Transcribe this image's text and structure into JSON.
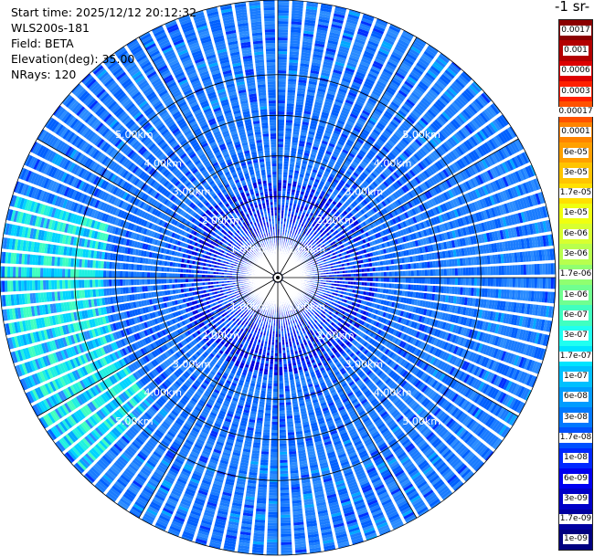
{
  "info": {
    "start_time": "Start time: 2025/12/12 20:12:32",
    "instrument": "WLS200s-181",
    "field": "Field: BETA",
    "elevation": "Elevation(deg): 35.00",
    "nrays": "NRays: 120"
  },
  "colorbar": {
    "unit_title": "-1 sr-",
    "labels": [
      "0.0017",
      "0.001",
      "0.0006",
      "0.0003",
      "0.00017",
      "0.0001",
      "6e-05",
      "3e-05",
      "1.7e-05",
      "1e-05",
      "6e-06",
      "3e-06",
      "1.7e-06",
      "1e-06",
      "6e-07",
      "3e-07",
      "1.7e-07",
      "1e-07",
      "6e-08",
      "3e-08",
      "1.7e-08",
      "1e-08",
      "6e-09",
      "3e-09",
      "1.7e-09",
      "1e-09"
    ],
    "colors": [
      "#8b0000",
      "#b30000",
      "#dd0000",
      "#ff2000",
      "#ff5200",
      "#ff8400",
      "#ffa000",
      "#ffc400",
      "#ffe000",
      "#f0ff10",
      "#d8ff30",
      "#b8ff4e",
      "#90ff70",
      "#70ff90",
      "#40ffc0",
      "#20fff0",
      "#00e4ff",
      "#00c0ff",
      "#009cff",
      "#0078ff",
      "#0050ff",
      "#0028ff",
      "#0000f0",
      "#0000c8",
      "#0000a0",
      "#000080"
    ]
  },
  "range_rings": [
    "1.00km",
    "2.00km",
    "3.00km",
    "4.00km",
    "5.00km"
  ],
  "chart_data": {
    "type": "heatmap",
    "nrays": 120,
    "rings_km": [
      1,
      2,
      3,
      4,
      5
    ],
    "max_range_km": 6.75,
    "dominant_level": "3e-08 to 1e-07",
    "enhanced_sector_azimuth_deg": [
      225,
      285
    ],
    "enhanced_sector_level": "1.7e-07 to 3e-07"
  }
}
